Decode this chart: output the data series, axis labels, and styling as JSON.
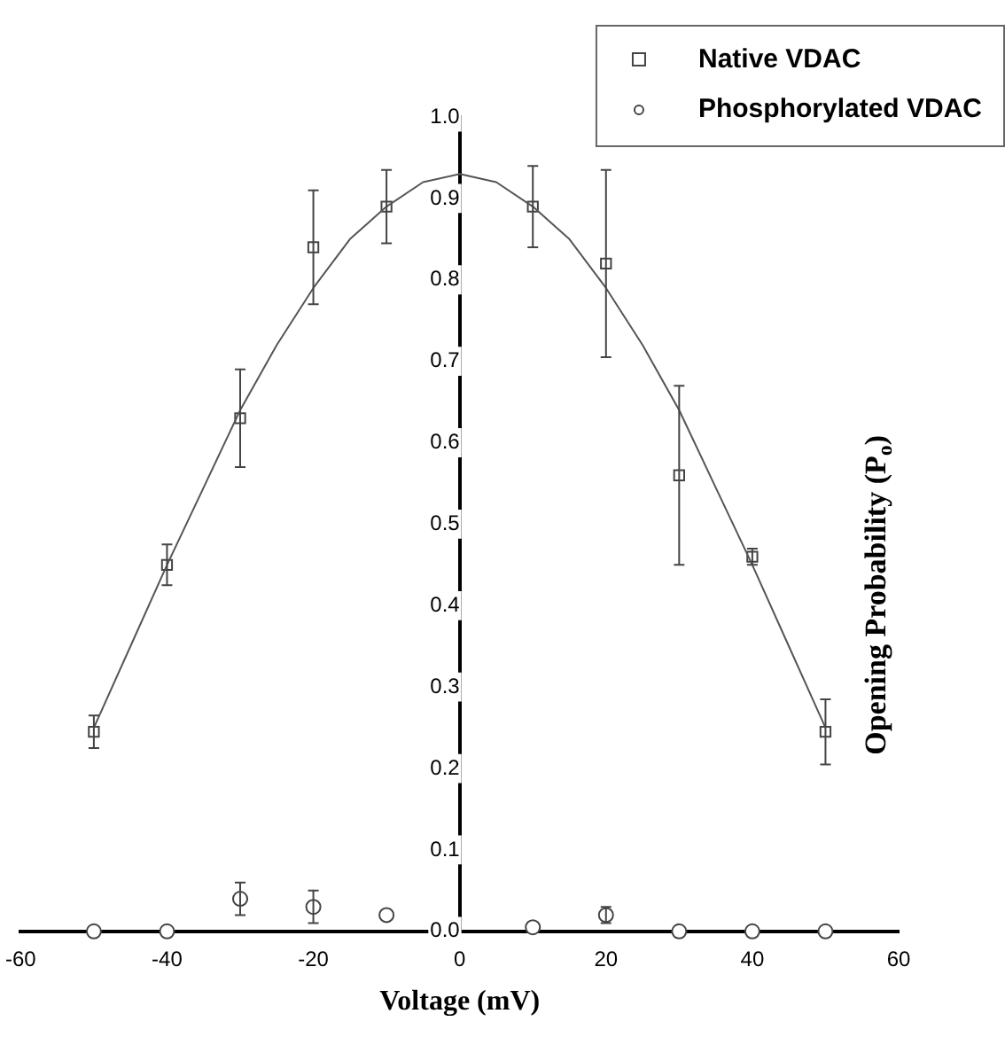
{
  "chart_data": {
    "type": "scatter",
    "xlabel": "Voltage (mV)",
    "ylabel": "Opening Probability (P$_{o}$)",
    "xlim": [
      -60,
      60
    ],
    "xticks": [
      -60,
      -40,
      -20,
      0,
      20,
      40,
      60
    ],
    "ylim": [
      0,
      1
    ],
    "yticks": [
      {
        "value": 0,
        "label": "0.0"
      },
      {
        "value": 0.1,
        "label": "0.1"
      },
      {
        "value": 0.2,
        "label": "0.2"
      },
      {
        "value": 0.3,
        "label": "0.3"
      },
      {
        "value": 0.4,
        "label": "0.4"
      },
      {
        "value": 0.5,
        "label": "0.5"
      },
      {
        "value": 0.6,
        "label": "0.6"
      },
      {
        "value": 0.7,
        "label": "0.7"
      },
      {
        "value": 0.8,
        "label": "0.8"
      },
      {
        "value": 0.9,
        "label": "0.9"
      },
      {
        "value": 1,
        "label": "1.0"
      }
    ],
    "grid": false,
    "legend": "top right",
    "series": [
      {
        "type": "line",
        "color": "#555555",
        "marker": "none",
        "line_style": "solid",
        "x": [
          -50,
          -45,
          -40,
          -35,
          -30,
          -25,
          -20,
          -15,
          -10,
          -5,
          0,
          5,
          10,
          15,
          20,
          25,
          30,
          35,
          40,
          45,
          50
        ],
        "values": [
          0.25,
          0.35,
          0.45,
          0.545,
          0.64,
          0.72,
          0.79,
          0.85,
          0.89,
          0.92,
          0.93,
          0.92,
          0.89,
          0.85,
          0.79,
          0.72,
          0.64,
          0.545,
          0.45,
          0.35,
          0.25
        ]
      },
      {
        "name": "Native VDAC",
        "color": "#444444",
        "marker": "square",
        "x": [
          -50,
          -40,
          -30,
          -20,
          -10,
          10,
          20,
          30,
          40,
          50
        ],
        "values": [
          0.245,
          0.45,
          0.63,
          0.84,
          0.89,
          0.89,
          0.82,
          0.56,
          0.46,
          0.245
        ],
        "errors": [
          0.02,
          0.025,
          0.06,
          0.07,
          0.045,
          0.05,
          0.115,
          0.11,
          0.01,
          0.04
        ]
      },
      {
        "name": "Phosphorylated VDAC",
        "color": "#444444",
        "marker": "circle",
        "x": [
          -50,
          -40,
          -30,
          -20,
          -10,
          10,
          20,
          30,
          40,
          50
        ],
        "values": [
          0,
          0,
          0.04,
          0.03,
          0.02,
          0.005,
          0.02,
          0,
          0,
          0
        ],
        "errors": [
          null,
          null,
          0.02,
          0.02,
          null,
          null,
          0.01,
          null,
          null,
          null
        ]
      }
    ]
  }
}
